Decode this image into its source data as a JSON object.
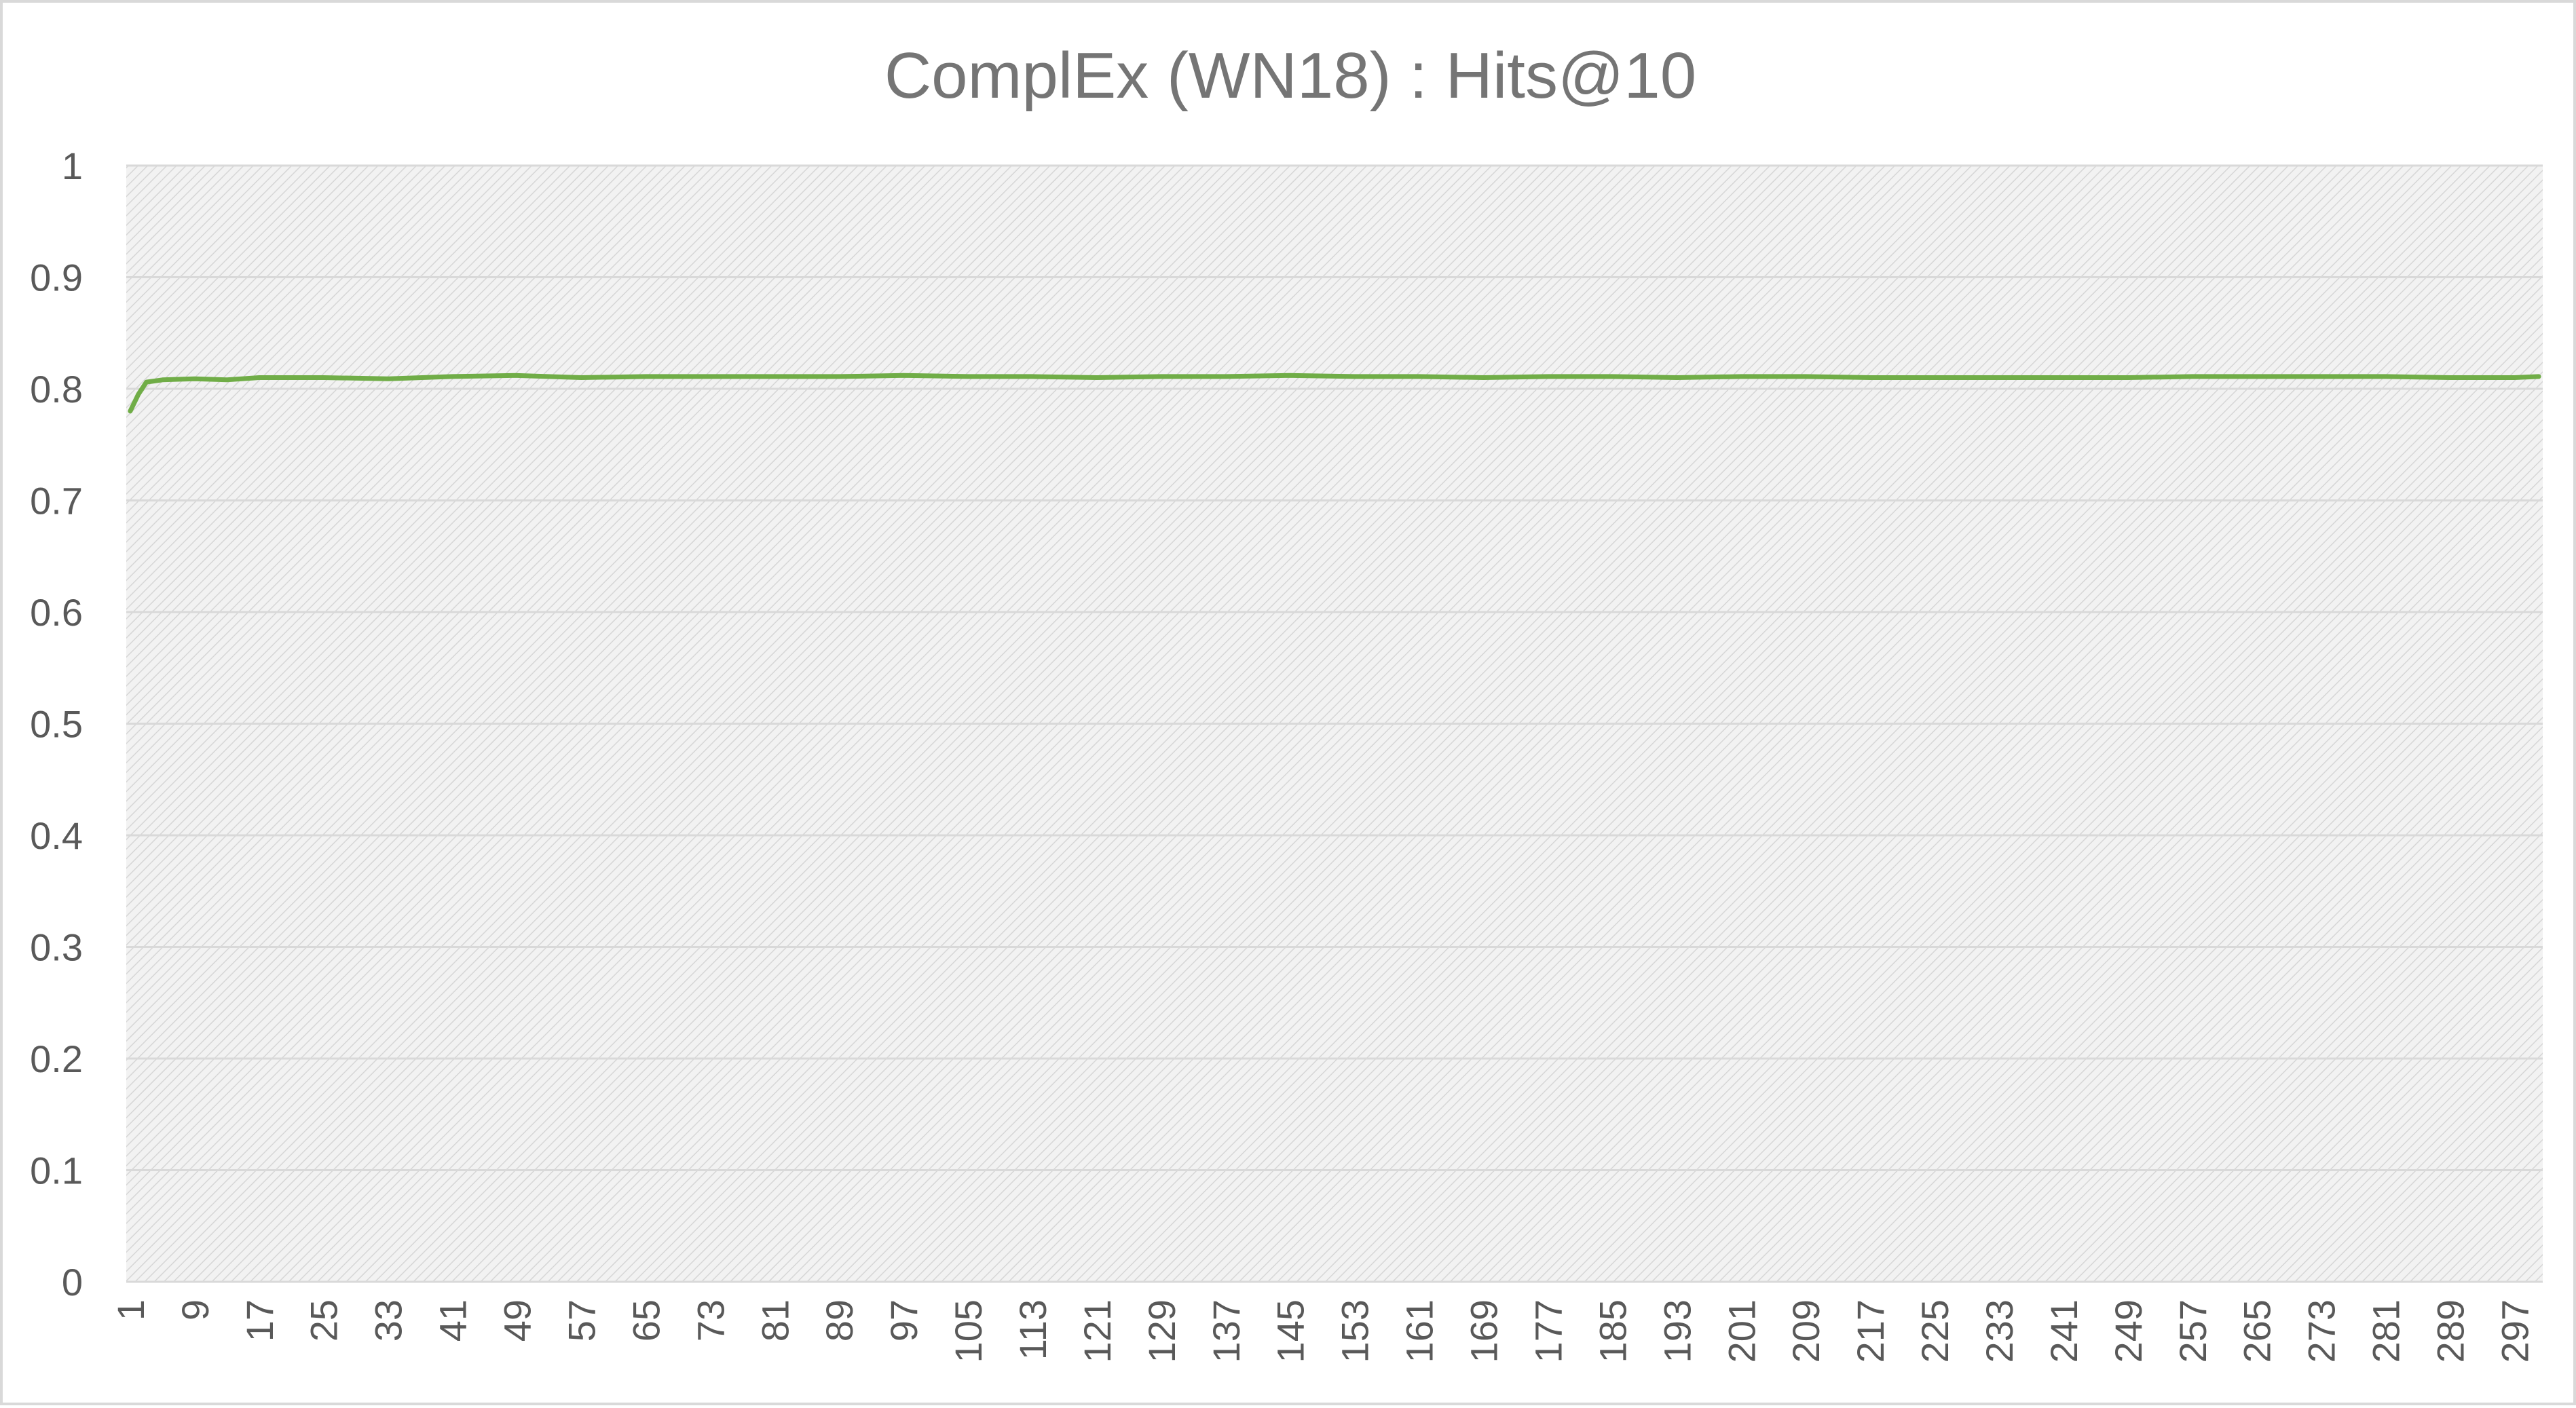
{
  "chart_data": {
    "type": "line",
    "title": "ComplEx (WN18) : Hits@10",
    "xlabel": "",
    "ylabel": "",
    "ylim": [
      0,
      1
    ],
    "yticks": [
      "0",
      "0.1",
      "0.2",
      "0.3",
      "0.4",
      "0.5",
      "0.6",
      "0.7",
      "0.8",
      "0.9",
      "1"
    ],
    "x_first": 1,
    "x_last": 300,
    "x_tick_labels": [
      "1",
      "9",
      "17",
      "25",
      "33",
      "41",
      "49",
      "57",
      "65",
      "73",
      "81",
      "89",
      "97",
      "105",
      "113",
      "121",
      "129",
      "137",
      "145",
      "153",
      "161",
      "169",
      "177",
      "185",
      "193",
      "201",
      "209",
      "217",
      "225",
      "233",
      "241",
      "249",
      "257",
      "265",
      "273",
      "281",
      "289",
      "297"
    ],
    "grid": "horizontal",
    "legend": "none",
    "series": [
      {
        "color": "#70ad47",
        "points": [
          [
            1,
            0.78
          ],
          [
            2,
            0.795
          ],
          [
            3,
            0.806
          ],
          [
            5,
            0.808
          ],
          [
            9,
            0.809
          ],
          [
            13,
            0.808
          ],
          [
            17,
            0.81
          ],
          [
            25,
            0.81
          ],
          [
            33,
            0.809
          ],
          [
            41,
            0.811
          ],
          [
            49,
            0.812
          ],
          [
            57,
            0.81
          ],
          [
            65,
            0.811
          ],
          [
            73,
            0.811
          ],
          [
            81,
            0.811
          ],
          [
            89,
            0.811
          ],
          [
            97,
            0.812
          ],
          [
            105,
            0.811
          ],
          [
            113,
            0.811
          ],
          [
            121,
            0.81
          ],
          [
            129,
            0.811
          ],
          [
            137,
            0.811
          ],
          [
            145,
            0.812
          ],
          [
            153,
            0.811
          ],
          [
            161,
            0.811
          ],
          [
            169,
            0.81
          ],
          [
            177,
            0.811
          ],
          [
            185,
            0.811
          ],
          [
            193,
            0.81
          ],
          [
            201,
            0.811
          ],
          [
            209,
            0.811
          ],
          [
            217,
            0.81
          ],
          [
            225,
            0.81
          ],
          [
            233,
            0.81
          ],
          [
            241,
            0.81
          ],
          [
            249,
            0.81
          ],
          [
            257,
            0.811
          ],
          [
            265,
            0.811
          ],
          [
            273,
            0.811
          ],
          [
            281,
            0.811
          ],
          [
            289,
            0.81
          ],
          [
            297,
            0.81
          ],
          [
            300,
            0.811
          ]
        ]
      }
    ],
    "colors": {
      "line": "#70ad47",
      "plot_background": "#efefef",
      "hatch": "#d6d6d6",
      "gridline": "#d9d9d9",
      "text": "#595959",
      "title": "#757575"
    }
  }
}
